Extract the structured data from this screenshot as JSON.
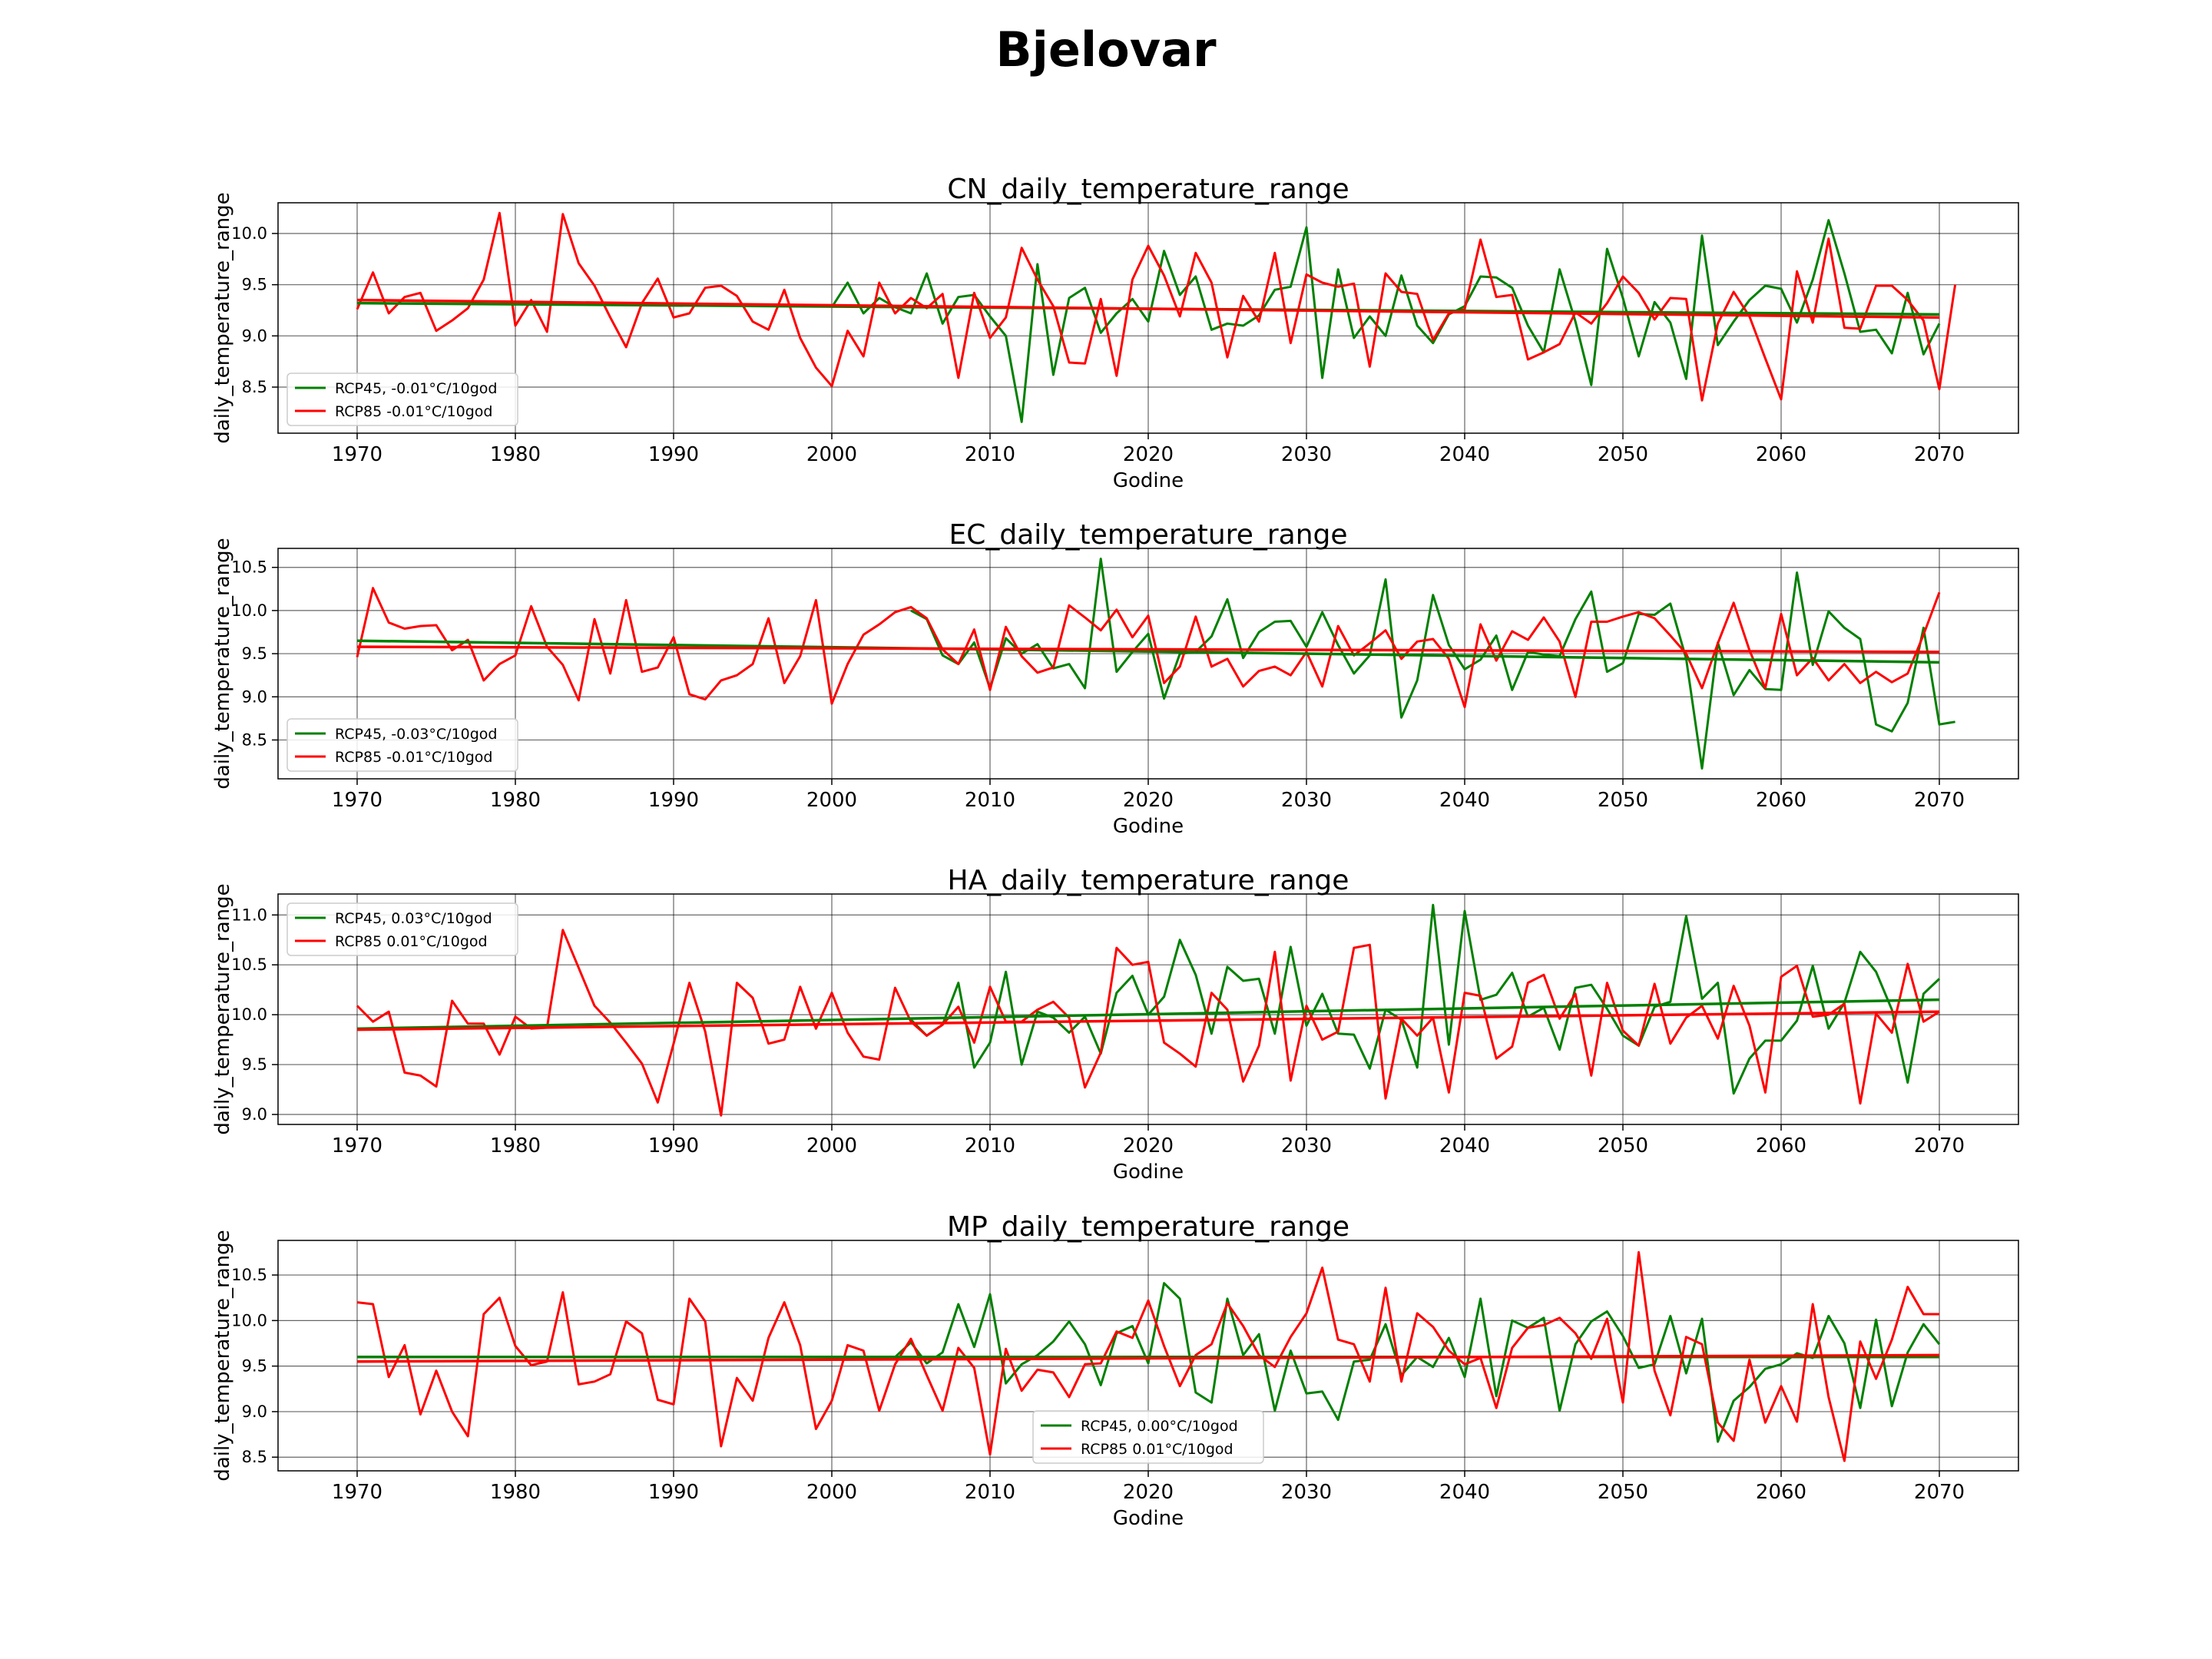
{
  "figure": {
    "title": "Bjelovar"
  },
  "colors": {
    "rcp45": "#008000",
    "rcp85": "#ff0000",
    "grid": "#000000"
  },
  "chart_data": [
    {
      "type": "line",
      "title": "CN_daily_temperature_range",
      "xlabel": "Godine",
      "ylabel": "daily_temperature_range",
      "xlim": [
        1965,
        2075
      ],
      "ylim": [
        8.05,
        10.3
      ],
      "xticks": [
        1970,
        1980,
        1990,
        2000,
        2010,
        2020,
        2030,
        2040,
        2050,
        2060,
        2070
      ],
      "yticks": [
        8.5,
        9.0,
        9.5,
        10.0
      ],
      "grid": true,
      "legend_placement": "lower-left",
      "x_start": 1970,
      "series": [
        {
          "name": "RCP45, -0.01°C/10god",
          "color": "#008000",
          "x_start": 2000,
          "trend": [
            9.32,
            9.21
          ],
          "values": [
            9.28,
            9.52,
            9.22,
            9.37,
            9.28,
            9.22,
            9.61,
            9.12,
            9.38,
            9.4,
            9.19,
            9.0,
            8.16,
            9.7,
            8.62,
            9.37,
            9.47,
            9.03,
            9.22,
            9.36,
            9.14,
            9.83,
            9.4,
            9.58,
            9.06,
            9.12,
            9.1,
            9.2,
            9.45,
            9.48,
            10.06,
            8.59,
            9.65,
            8.98,
            9.19,
            9.0,
            9.59,
            9.1,
            8.93,
            9.21,
            9.29,
            9.58,
            9.57,
            9.47,
            9.1,
            8.84,
            9.65,
            9.14,
            8.52,
            9.85,
            9.37,
            8.8,
            9.33,
            9.13,
            8.58,
            9.98,
            8.91,
            9.14,
            9.35,
            9.49,
            9.46,
            9.13,
            9.55,
            10.13,
            9.61,
            9.04,
            9.06,
            8.83,
            9.42,
            8.82,
            9.12
          ]
        },
        {
          "name": "RCP85 -0.01°C/10god",
          "color": "#ff0000",
          "x_start": 1970,
          "trend": [
            9.35,
            9.18
          ],
          "values": [
            9.26,
            9.62,
            9.22,
            9.38,
            9.42,
            9.05,
            9.15,
            9.27,
            9.55,
            10.2,
            9.1,
            9.35,
            9.04,
            10.19,
            9.71,
            9.49,
            9.18,
            8.89,
            9.32,
            9.56,
            9.18,
            9.22,
            9.47,
            9.49,
            9.39,
            9.14,
            9.06,
            9.45,
            8.98,
            8.69,
            8.51,
            9.05,
            8.8,
            9.52,
            9.22,
            9.37,
            9.27,
            9.41,
            8.59,
            9.42,
            8.98,
            9.18,
            9.86,
            9.55,
            9.29,
            8.74,
            8.73,
            9.36,
            8.61,
            9.55,
            9.88,
            9.59,
            9.19,
            9.81,
            9.52,
            8.79,
            9.39,
            9.14,
            9.81,
            8.93,
            9.6,
            9.52,
            9.48,
            9.51,
            8.7,
            9.61,
            9.43,
            9.41,
            8.96,
            9.22,
            9.26,
            9.94,
            9.38,
            9.4,
            8.77,
            8.84,
            8.92,
            9.23,
            9.12,
            9.32,
            9.58,
            9.42,
            9.16,
            9.37,
            9.36,
            8.37,
            9.12,
            9.43,
            9.19,
            8.78,
            8.38,
            9.63,
            9.13,
            9.95,
            9.08,
            9.07,
            9.49,
            9.49,
            9.35,
            9.15,
            8.48,
            9.5
          ]
        }
      ]
    },
    {
      "type": "line",
      "title": "EC_daily_temperature_range",
      "xlabel": "Godine",
      "ylabel": "daily_temperature_range",
      "xlim": [
        1965,
        2075
      ],
      "ylim": [
        8.05,
        10.72
      ],
      "xticks": [
        1970,
        1980,
        1990,
        2000,
        2010,
        2020,
        2030,
        2040,
        2050,
        2060,
        2070
      ],
      "yticks": [
        8.5,
        9.0,
        9.5,
        10.0,
        10.5
      ],
      "grid": true,
      "legend_placement": "lower-left",
      "x_start": 1970,
      "series": [
        {
          "name": "RCP45, -0.03°C/10god",
          "color": "#008000",
          "x_start": 2005,
          "trend": [
            9.65,
            9.4
          ],
          "values": [
            10.0,
            9.9,
            9.48,
            9.38,
            9.63,
            9.1,
            9.68,
            9.5,
            9.61,
            9.33,
            9.38,
            9.1,
            10.6,
            9.29,
            9.52,
            9.73,
            8.98,
            9.5,
            9.52,
            9.7,
            10.13,
            9.45,
            9.75,
            9.87,
            9.88,
            9.58,
            9.98,
            9.6,
            9.27,
            9.48,
            10.36,
            8.76,
            9.19,
            10.18,
            9.6,
            9.32,
            9.43,
            9.71,
            9.08,
            9.52,
            9.49,
            9.47,
            9.9,
            10.22,
            9.29,
            9.39,
            9.96,
            9.95,
            10.08,
            9.44,
            8.17,
            9.63,
            9.02,
            9.31,
            9.09,
            9.08,
            10.44,
            9.37,
            9.99,
            9.8,
            9.67,
            8.68,
            8.6,
            8.93,
            9.8,
            8.68,
            8.71
          ]
        },
        {
          "name": "RCP85 -0.01°C/10god",
          "color": "#ff0000",
          "x_start": 1970,
          "trend": [
            9.58,
            9.52
          ],
          "values": [
            9.46,
            10.26,
            9.86,
            9.79,
            9.82,
            9.83,
            9.54,
            9.66,
            9.19,
            9.38,
            9.48,
            10.05,
            9.58,
            9.37,
            8.96,
            9.9,
            9.27,
            10.12,
            9.29,
            9.34,
            9.69,
            9.03,
            8.97,
            9.19,
            9.25,
            9.38,
            9.91,
            9.16,
            9.47,
            10.12,
            8.92,
            9.38,
            9.72,
            9.84,
            9.98,
            10.04,
            9.91,
            9.55,
            9.38,
            9.78,
            9.08,
            9.81,
            9.47,
            9.28,
            9.34,
            10.06,
            9.92,
            9.77,
            10.01,
            9.69,
            9.94,
            9.16,
            9.35,
            9.93,
            9.35,
            9.44,
            9.12,
            9.3,
            9.35,
            9.25,
            9.52,
            9.12,
            9.82,
            9.48,
            9.62,
            9.77,
            9.44,
            9.64,
            9.67,
            9.44,
            8.88,
            9.84,
            9.42,
            9.76,
            9.66,
            9.92,
            9.64,
            9.0,
            9.87,
            9.87,
            9.93,
            9.98,
            9.91,
            9.71,
            9.5,
            9.1,
            9.62,
            10.09,
            9.54,
            9.1,
            9.96,
            9.25,
            9.45,
            9.19,
            9.38,
            9.16,
            9.29,
            9.17,
            9.27,
            9.72,
            10.21
          ]
        }
      ]
    },
    {
      "type": "line",
      "title": "HA_daily_temperature_range",
      "xlabel": "Godine",
      "ylabel": "daily_temperature_range",
      "xlim": [
        1965,
        2075
      ],
      "ylim": [
        8.9,
        11.21
      ],
      "xticks": [
        1970,
        1980,
        1990,
        2000,
        2010,
        2020,
        2030,
        2040,
        2050,
        2060,
        2070
      ],
      "yticks": [
        9.0,
        9.5,
        10.0,
        10.5,
        11.0
      ],
      "grid": true,
      "legend_placement": "upper-left",
      "x_start": 1970,
      "series": [
        {
          "name": "RCP45, 0.03°C/10god",
          "color": "#008000",
          "x_start": 2005,
          "trend": [
            9.86,
            10.15
          ],
          "values": [
            9.95,
            9.79,
            9.9,
            10.32,
            9.47,
            9.72,
            10.43,
            9.5,
            10.03,
            9.97,
            9.82,
            9.98,
            9.61,
            10.22,
            10.39,
            10.0,
            10.18,
            10.75,
            10.4,
            9.81,
            10.48,
            10.34,
            10.36,
            9.81,
            10.68,
            9.89,
            10.21,
            9.81,
            9.8,
            9.46,
            10.05,
            9.95,
            9.47,
            11.1,
            9.7,
            11.04,
            10.15,
            10.2,
            10.42,
            9.98,
            10.07,
            9.65,
            10.27,
            10.3,
            10.06,
            9.79,
            9.69,
            10.08,
            10.13,
            10.99,
            10.16,
            10.32,
            9.21,
            9.56,
            9.74,
            9.74,
            9.94,
            10.49,
            9.86,
            10.12,
            10.63,
            10.43,
            10.05,
            9.32,
            10.21,
            10.36
          ]
        },
        {
          "name": "RCP85 0.01°C/10god",
          "color": "#ff0000",
          "x_start": 1970,
          "trend": [
            9.85,
            10.03
          ],
          "values": [
            10.09,
            9.93,
            10.03,
            9.42,
            9.39,
            9.28,
            10.14,
            9.91,
            9.91,
            9.6,
            9.98,
            9.86,
            9.87,
            10.85,
            10.47,
            10.09,
            9.92,
            9.72,
            9.51,
            9.12,
            9.71,
            10.32,
            9.83,
            8.99,
            10.32,
            10.17,
            9.71,
            9.75,
            10.28,
            9.86,
            10.22,
            9.82,
            9.58,
            9.55,
            10.27,
            9.93,
            9.79,
            9.9,
            10.08,
            9.72,
            10.28,
            9.93,
            9.93,
            10.05,
            10.13,
            9.97,
            9.27,
            9.62,
            10.67,
            10.5,
            10.53,
            9.72,
            9.61,
            9.48,
            10.22,
            10.05,
            9.33,
            9.69,
            10.63,
            9.34,
            10.09,
            9.75,
            9.83,
            10.67,
            10.7,
            9.16,
            9.96,
            9.79,
            9.97,
            9.22,
            10.22,
            10.19,
            9.56,
            9.68,
            10.32,
            10.4,
            9.96,
            10.21,
            9.39,
            10.32,
            9.84,
            9.69,
            10.31,
            9.71,
            9.97,
            10.09,
            9.76,
            10.29,
            9.89,
            9.22,
            10.38,
            10.49,
            9.98,
            10.0,
            10.11,
            9.11,
            10.01,
            9.82,
            10.51,
            9.93,
            10.03
          ]
        }
      ]
    },
    {
      "type": "line",
      "title": "MP_daily_temperature_range",
      "xlabel": "Godine",
      "ylabel": "daily_temperature_range",
      "xlim": [
        1965,
        2075
      ],
      "ylim": [
        8.35,
        10.88
      ],
      "xticks": [
        1970,
        1980,
        1990,
        2000,
        2010,
        2020,
        2030,
        2040,
        2050,
        2060,
        2070
      ],
      "yticks": [
        8.5,
        9.0,
        9.5,
        10.0,
        10.5
      ],
      "grid": true,
      "legend_placement": "lower-center",
      "x_start": 1970,
      "series": [
        {
          "name": "RCP45, 0.00°C/10god",
          "color": "#008000",
          "x_start": 1970,
          "trend": [
            9.6,
            9.6
          ],
          "values": [
            9.6,
            9.6,
            9.6,
            9.6,
            9.6,
            9.6,
            9.6,
            9.6,
            9.6,
            9.6,
            9.6,
            9.6,
            9.6,
            9.6,
            9.6,
            9.6,
            9.6,
            9.6,
            9.6,
            9.6,
            9.6,
            9.6,
            9.6,
            9.6,
            9.6,
            9.6,
            9.6,
            9.6,
            9.6,
            9.6,
            9.6,
            9.6,
            9.6,
            9.6,
            9.6,
            9.76,
            9.53,
            9.65,
            10.18,
            9.71,
            10.29,
            9.31,
            9.52,
            9.62,
            9.77,
            9.99,
            9.74,
            9.29,
            9.86,
            9.94,
            9.53,
            10.41,
            10.24,
            9.21,
            9.1,
            10.24,
            9.62,
            9.85,
            9.01,
            9.67,
            9.2,
            9.22,
            8.91,
            9.55,
            9.57,
            9.96,
            9.4,
            9.6,
            9.49,
            9.81,
            9.38,
            10.24,
            9.17,
            10.0,
            9.92,
            10.03,
            9.01,
            9.74,
            9.99,
            10.1,
            9.83,
            9.48,
            9.52,
            10.05,
            9.42,
            10.02,
            8.67,
            9.12,
            9.27,
            9.47,
            9.52,
            9.64,
            9.59,
            10.05,
            9.75,
            9.04,
            10.01,
            9.06,
            9.65,
            9.96,
            9.74
          ]
        },
        {
          "name": "RCP85 0.01°C/10god",
          "color": "#ff0000",
          "x_start": 1970,
          "trend": [
            9.55,
            9.62
          ],
          "values": [
            10.2,
            10.18,
            9.38,
            9.73,
            8.97,
            9.45,
            9.0,
            8.73,
            10.07,
            10.25,
            9.72,
            9.51,
            9.55,
            10.31,
            9.3,
            9.33,
            9.41,
            9.99,
            9.86,
            9.13,
            9.08,
            10.24,
            9.99,
            8.62,
            9.37,
            9.12,
            9.81,
            10.2,
            9.73,
            8.81,
            9.12,
            9.73,
            9.67,
            9.01,
            9.52,
            9.8,
            9.4,
            9.01,
            9.7,
            9.48,
            8.53,
            9.69,
            9.23,
            9.46,
            9.43,
            9.16,
            9.52,
            9.53,
            9.88,
            9.81,
            10.22,
            9.72,
            9.28,
            9.62,
            9.74,
            10.19,
            9.94,
            9.62,
            9.49,
            9.82,
            10.08,
            10.58,
            9.79,
            9.74,
            9.33,
            10.36,
            9.33,
            10.08,
            9.93,
            9.67,
            9.52,
            9.59,
            9.04,
            9.7,
            9.92,
            9.95,
            10.03,
            9.86,
            9.58,
            10.02,
            9.1,
            10.75,
            9.45,
            8.96,
            9.82,
            9.74,
            8.88,
            8.68,
            9.57,
            8.88,
            9.28,
            8.89,
            10.18,
            9.16,
            8.46,
            9.77,
            9.36,
            9.79,
            10.37,
            10.07,
            10.07
          ]
        }
      ]
    }
  ]
}
